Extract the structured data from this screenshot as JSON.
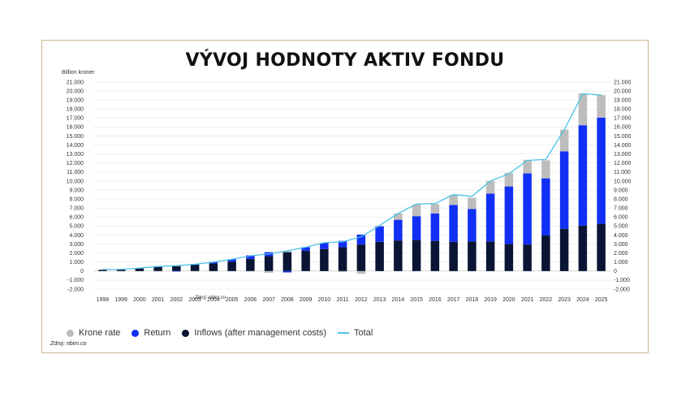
{
  "title": "VÝVOJ HODNOTY AKTIV FONDU",
  "source": "Zdroj: nbim.co",
  "watermark": "Zdroj: nbim.co",
  "colors": {
    "krone": "#bdbdbd",
    "return": "#1230f5",
    "inflows": "#0a1535",
    "total": "#4cc3e6",
    "grid": "#e6e6e6"
  },
  "chart_data": {
    "type": "bar",
    "stacked": true,
    "ylabel": "Billion kroner",
    "ylim": [
      -2000,
      21000
    ],
    "ytick_labels": [
      "-2.000",
      "-1.000",
      "0",
      "1.000",
      "2.000",
      "3.000",
      "4.000",
      "5.000",
      "6.000",
      "7.000",
      "8.000",
      "9.000",
      "10.000",
      "11.000",
      "12.000",
      "13.000",
      "14.000",
      "15.000",
      "16.000",
      "17.000",
      "18.000",
      "19.000",
      "20.000",
      "21.000"
    ],
    "categories": [
      "1998",
      "1999",
      "2000",
      "2001",
      "2002",
      "2003",
      "2004",
      "2005",
      "2006",
      "2007",
      "2008",
      "2009",
      "2010",
      "2011",
      "2012",
      "2013",
      "2014",
      "2015",
      "2016",
      "2017",
      "2018",
      "2019",
      "2020",
      "2021",
      "2022",
      "2023",
      "2024",
      "2025"
    ],
    "series": [
      {
        "name": "Inflows (after management costs)",
        "type": "bar",
        "values": [
          150,
          200,
          300,
          450,
          550,
          700,
          850,
          1050,
          1350,
          1650,
          2100,
          2250,
          2450,
          2650,
          2950,
          3250,
          3400,
          3450,
          3350,
          3250,
          3300,
          3300,
          3000,
          2950,
          3950,
          4700,
          5050,
          5250
        ]
      },
      {
        "name": "Return",
        "type": "bar",
        "values": [
          0,
          20,
          0,
          100,
          -50,
          100,
          150,
          250,
          400,
          450,
          -150,
          400,
          650,
          700,
          1100,
          1700,
          2300,
          2650,
          3050,
          4100,
          3600,
          5300,
          6400,
          7900,
          6350,
          8600,
          11150,
          11800
        ]
      },
      {
        "name": "Krone rate",
        "type": "bar",
        "values": [
          25,
          -30,
          30,
          -40,
          100,
          -50,
          0,
          0,
          -50,
          -200,
          100,
          0,
          50,
          -100,
          -300,
          100,
          700,
          1300,
          1050,
          1100,
          1250,
          1400,
          1500,
          1500,
          2000,
          2400,
          3550,
          2500
        ]
      },
      {
        "name": "Total",
        "type": "line",
        "values": [
          175,
          190,
          330,
          510,
          600,
          750,
          1000,
          1300,
          1700,
          1900,
          2250,
          2650,
          3150,
          3250,
          3800,
          5050,
          6400,
          7450,
          7500,
          8500,
          8300,
          10000,
          10800,
          12300,
          12400,
          15700,
          19700,
          19550
        ]
      }
    ],
    "legend_position": "bottom-left",
    "grid": true
  }
}
